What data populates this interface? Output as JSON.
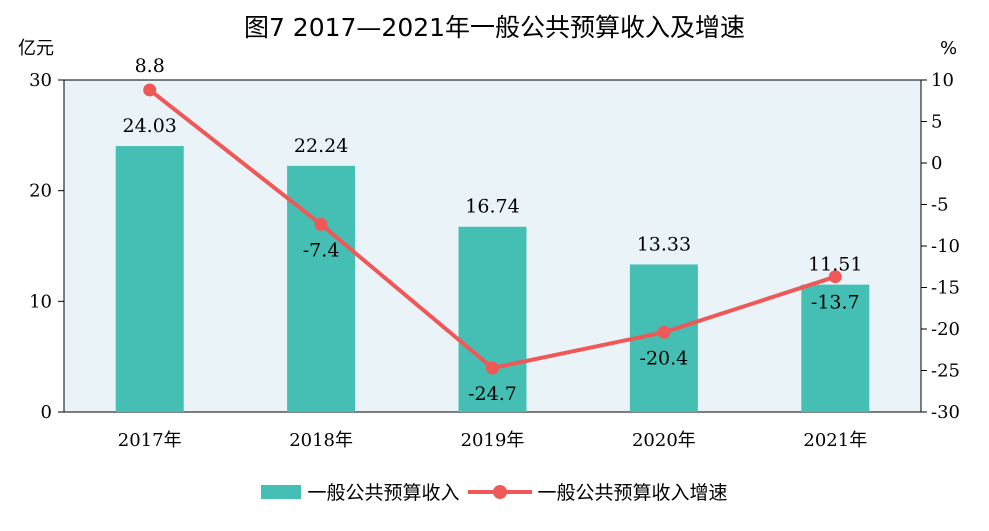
{
  "chart_data": {
    "type": "bar+line",
    "title": "图7  2017—2021年一般公共预算收入及增速",
    "categories": [
      "2017年",
      "2018年",
      "2019年",
      "2020年",
      "2021年"
    ],
    "left_axis": {
      "unit": "亿元",
      "ylim": [
        0,
        30
      ],
      "ticks": [
        0,
        10,
        20,
        30
      ]
    },
    "right_axis": {
      "unit": "%",
      "ylim": [
        -30,
        10
      ],
      "ticks": [
        10,
        5,
        0,
        -5,
        -10,
        -15,
        -20,
        -25,
        -30
      ]
    },
    "series": [
      {
        "name": "一般公共预算收入",
        "type": "bar",
        "axis": "left",
        "values": [
          24.03,
          22.24,
          16.74,
          13.33,
          11.51
        ],
        "labels": [
          "24.03",
          "22.24",
          "16.74",
          "13.33",
          "11.51"
        ]
      },
      {
        "name": "一般公共预算收入增速",
        "type": "line",
        "axis": "right",
        "values": [
          8.8,
          -7.4,
          -24.7,
          -20.4,
          -13.7
        ],
        "labels": [
          "8.8",
          "-7.4",
          "-24.7",
          "-20.4",
          "-13.7"
        ]
      }
    ],
    "colors": {
      "bar": "#45bfb3",
      "line": "#f05757",
      "plot_bg": "#eaf4f8"
    },
    "legend_position": "bottom",
    "grid": false
  }
}
